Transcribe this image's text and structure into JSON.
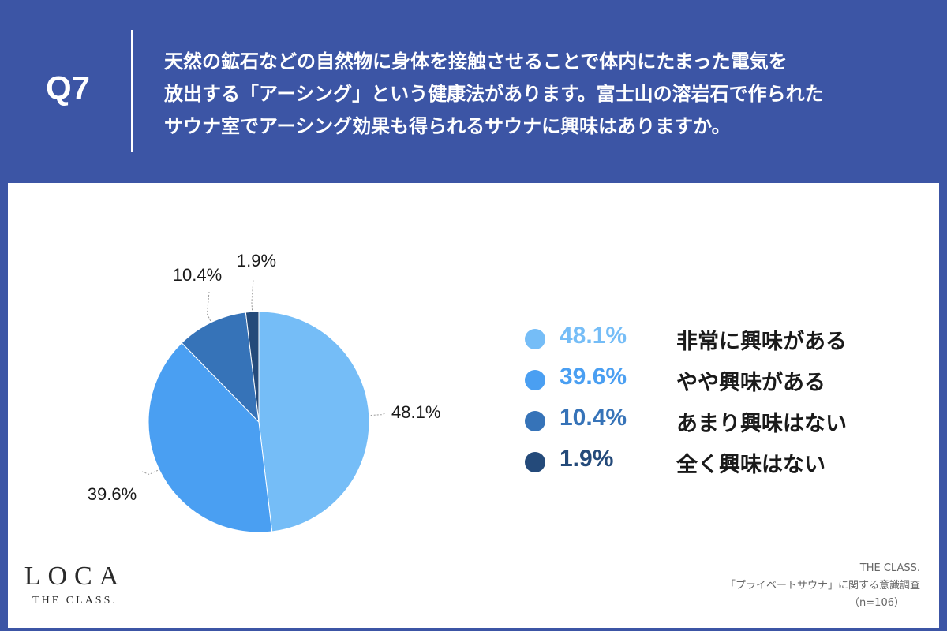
{
  "header": {
    "question_no": "Q7",
    "question_lines": [
      "天然の鉱石などの自然物に身体を接触させることで体内にたまった電気を",
      "放出する「アーシング」という健康法があります。富士山の溶岩石で作られた",
      "サウナ室でアーシング効果も得られるサウナに興味はありますか。"
    ]
  },
  "chart_data": {
    "type": "pie",
    "slices": [
      {
        "label": "非常に興味がある",
        "value": 48.1,
        "display": "48.1%",
        "color": "#75bdf7"
      },
      {
        "label": "やや興味がある",
        "value": 39.6,
        "display": "39.6%",
        "color": "#4a9ff2"
      },
      {
        "label": "あまり興味はない",
        "value": 10.4,
        "display": "10.4%",
        "color": "#3673b8"
      },
      {
        "label": "全く興味はない",
        "value": 1.9,
        "display": "1.9%",
        "color": "#244a7a"
      }
    ],
    "start": "12 o'clock",
    "direction": "clockwise",
    "legend_position": "right"
  },
  "logo": {
    "main": "LOCA",
    "sub": "THE CLASS."
  },
  "source": {
    "line1": "THE CLASS.",
    "line2": "「プライベートサウナ」に関する意識調査",
    "line3": "（n=106）"
  }
}
